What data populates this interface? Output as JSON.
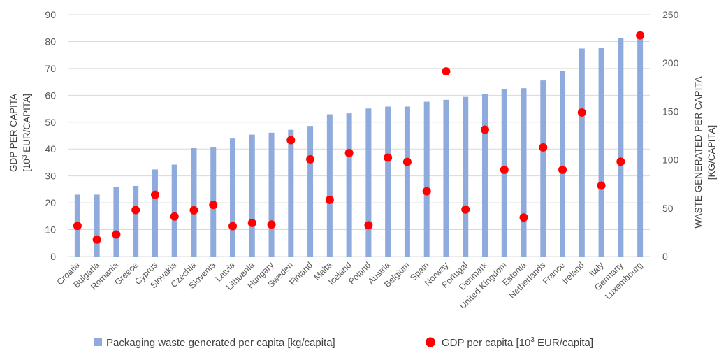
{
  "chart_data": {
    "type": "bar",
    "categories": [
      "Croatia",
      "Bulgaria",
      "Romania",
      "Greece",
      "Cyprus",
      "Slovakia",
      "Czechia",
      "Slovenia",
      "Latvia",
      "Lithuania",
      "Hungary",
      "Sweden",
      "Finland",
      "Malta",
      "Iceland",
      "Poland",
      "Austria",
      "Belgium",
      "Spain",
      "Norway",
      "Portugal",
      "Denmark",
      "United Kingdom",
      "Estonia",
      "Netherlands",
      "France",
      "Ireland",
      "Italy",
      "Germany",
      "Luxembourg"
    ],
    "series": [
      {
        "name": "Packaging waste generated per capita [kg/capita]",
        "type": "bar",
        "axis": "right",
        "color": "#8faadc",
        "values": [
          64,
          64,
          72,
          73,
          90,
          95,
          112,
          113,
          122,
          126,
          128,
          131,
          135,
          147,
          148,
          153,
          155,
          155,
          160,
          162,
          165,
          168,
          173,
          174,
          182,
          192,
          215,
          216,
          226,
          230
        ]
      },
      {
        "name": "GDP per capita [10³ EUR/capita]",
        "type": "scatter",
        "axis": "left",
        "color": "#ff0000",
        "values": [
          11.4,
          6.3,
          8.2,
          17.3,
          23.0,
          14.9,
          17.2,
          19.2,
          11.3,
          12.5,
          11.9,
          43.3,
          36.2,
          21.1,
          38.5,
          11.6,
          36.8,
          35.2,
          24.3,
          68.9,
          17.5,
          47.2,
          32.3,
          14.5,
          40.6,
          32.3,
          53.6,
          26.4,
          35.3,
          82.3
        ]
      }
    ],
    "y_left": {
      "label_line1": "GDP PER CAPITA",
      "label_line2_pre": "[10",
      "label_line2_sup": "3",
      "label_line2_post": " EUR/CAPITA]",
      "ticks": [
        "0",
        "10",
        "20",
        "30",
        "40",
        "50",
        "60",
        "70",
        "80",
        "90"
      ],
      "range": [
        0,
        90
      ]
    },
    "y_right": {
      "label_line1": "WASTE GENERATED PER CAPITA",
      "label_line2": "[KG/CAPITA]",
      "ticks": [
        "0",
        "50",
        "100",
        "150",
        "200",
        "250"
      ],
      "range": [
        0,
        250
      ]
    },
    "legend": {
      "position": "bottom",
      "bar_label": "Packaging waste generated per capita [kg/capita]",
      "dot_label_pre": "GDP per capita [10",
      "dot_label_sup": "3",
      "dot_label_post": " EUR/capita]"
    },
    "grid": "horizontal"
  }
}
